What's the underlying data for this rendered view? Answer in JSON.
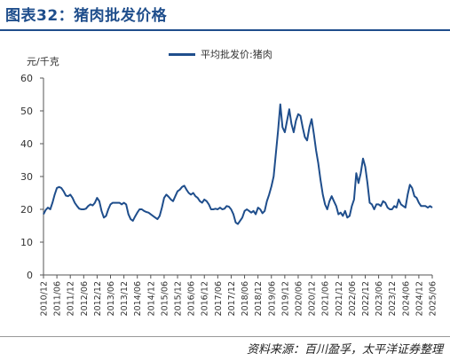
{
  "figure": {
    "title": "图表32：猪肉批发价格",
    "source": "资料来源：百川盈孚，太平洋证券整理"
  },
  "chart_data": {
    "type": "line",
    "unit_label": "元/千克",
    "ylim": [
      0,
      60
    ],
    "yticks": [
      0,
      10,
      20,
      30,
      40,
      50,
      60
    ],
    "x_range": [
      "2010-12",
      "2025-06"
    ],
    "xticks": [
      "2010/12",
      "2011/06",
      "2011/12",
      "2012/06",
      "2012/12",
      "2013/06",
      "2013/12",
      "2014/06",
      "2014/12",
      "2015/06",
      "2015/12",
      "2016/06",
      "2016/12",
      "2017/06",
      "2017/12",
      "2018/06",
      "2018/12",
      "2019/06",
      "2019/12",
      "2020/06",
      "2020/12",
      "2021/06",
      "2021/12",
      "2022/06",
      "2022/12",
      "2023/06",
      "2023/12",
      "2024/06",
      "2024/12",
      "2025/06"
    ],
    "grid": false,
    "legend_position": "top-center",
    "series": [
      {
        "name": "平均批发价:猪肉",
        "color": "#1f4e8c",
        "x": [
          "2010-12",
          "2011-01",
          "2011-02",
          "2011-03",
          "2011-04",
          "2011-05",
          "2011-06",
          "2011-07",
          "2011-08",
          "2011-09",
          "2011-10",
          "2011-11",
          "2011-12",
          "2012-01",
          "2012-02",
          "2012-03",
          "2012-04",
          "2012-05",
          "2012-06",
          "2012-07",
          "2012-08",
          "2012-09",
          "2012-10",
          "2012-11",
          "2012-12",
          "2013-01",
          "2013-02",
          "2013-03",
          "2013-04",
          "2013-05",
          "2013-06",
          "2013-07",
          "2013-08",
          "2013-09",
          "2013-10",
          "2013-11",
          "2013-12",
          "2014-01",
          "2014-02",
          "2014-03",
          "2014-04",
          "2014-05",
          "2014-06",
          "2014-07",
          "2014-08",
          "2014-09",
          "2014-10",
          "2014-11",
          "2014-12",
          "2015-01",
          "2015-02",
          "2015-03",
          "2015-04",
          "2015-05",
          "2015-06",
          "2015-07",
          "2015-08",
          "2015-09",
          "2015-10",
          "2015-11",
          "2015-12",
          "2016-01",
          "2016-02",
          "2016-03",
          "2016-04",
          "2016-05",
          "2016-06",
          "2016-07",
          "2016-08",
          "2016-09",
          "2016-10",
          "2016-11",
          "2016-12",
          "2017-01",
          "2017-02",
          "2017-03",
          "2017-04",
          "2017-05",
          "2017-06",
          "2017-07",
          "2017-08",
          "2017-09",
          "2017-10",
          "2017-11",
          "2017-12",
          "2018-01",
          "2018-02",
          "2018-03",
          "2018-04",
          "2018-05",
          "2018-06",
          "2018-07",
          "2018-08",
          "2018-09",
          "2018-10",
          "2018-11",
          "2018-12",
          "2019-01",
          "2019-02",
          "2019-03",
          "2019-04",
          "2019-05",
          "2019-06",
          "2019-07",
          "2019-08",
          "2019-09",
          "2019-10",
          "2019-11",
          "2019-12",
          "2020-01",
          "2020-02",
          "2020-03",
          "2020-04",
          "2020-05",
          "2020-06",
          "2020-07",
          "2020-08",
          "2020-09",
          "2020-10",
          "2020-11",
          "2020-12",
          "2021-01",
          "2021-02",
          "2021-03",
          "2021-04",
          "2021-05",
          "2021-06",
          "2021-07",
          "2021-08",
          "2021-09",
          "2021-10",
          "2021-11",
          "2021-12",
          "2022-01",
          "2022-02",
          "2022-03",
          "2022-04",
          "2022-05",
          "2022-06",
          "2022-07",
          "2022-08",
          "2022-09",
          "2022-10",
          "2022-11",
          "2022-12",
          "2023-01",
          "2023-02",
          "2023-03",
          "2023-04",
          "2023-05",
          "2023-06",
          "2023-07",
          "2023-08",
          "2023-09",
          "2023-10",
          "2023-11",
          "2023-12",
          "2024-01",
          "2024-02",
          "2024-03",
          "2024-04",
          "2024-05",
          "2024-06",
          "2024-07",
          "2024-08",
          "2024-09",
          "2024-10",
          "2024-11",
          "2024-12",
          "2025-01",
          "2025-02",
          "2025-03",
          "2025-04",
          "2025-05",
          "2025-06"
        ],
        "values": [
          18.5,
          19.8,
          20.5,
          20.0,
          22.0,
          24.5,
          26.5,
          26.8,
          26.5,
          25.5,
          24.2,
          24.0,
          24.5,
          23.5,
          22.0,
          21.0,
          20.2,
          20.0,
          20.0,
          20.2,
          21.0,
          21.5,
          21.2,
          22.0,
          23.5,
          22.5,
          19.5,
          17.5,
          18.0,
          20.0,
          21.5,
          22.0,
          22.0,
          22.0,
          22.0,
          21.5,
          22.0,
          21.5,
          18.5,
          17.0,
          16.5,
          17.8,
          19.0,
          20.0,
          20.0,
          19.5,
          19.2,
          19.0,
          18.5,
          18.0,
          17.5,
          17.0,
          18.0,
          20.5,
          23.5,
          24.5,
          23.8,
          23.0,
          22.5,
          24.0,
          25.5,
          26.0,
          26.8,
          27.2,
          26.0,
          25.0,
          24.5,
          25.0,
          24.0,
          23.5,
          22.5,
          22.0,
          23.0,
          22.5,
          21.5,
          20.0,
          20.0,
          20.2,
          20.0,
          20.5,
          20.0,
          20.2,
          21.0,
          20.8,
          20.0,
          18.5,
          16.0,
          15.5,
          16.5,
          17.5,
          19.5,
          20.0,
          19.5,
          19.0,
          19.5,
          18.5,
          20.5,
          20.0,
          18.8,
          19.5,
          22.5,
          24.5,
          27.0,
          30.0,
          37.0,
          44.0,
          52.0,
          45.0,
          43.5,
          47.0,
          50.5,
          46.0,
          43.5,
          47.0,
          49.0,
          48.5,
          45.0,
          42.0,
          41.0,
          45.0,
          47.5,
          43.0,
          38.0,
          34.0,
          29.0,
          24.5,
          21.5,
          20.0,
          22.5,
          24.0,
          22.5,
          21.0,
          18.5,
          19.0,
          18.0,
          19.5,
          17.5,
          18.0,
          21.0,
          23.0,
          31.0,
          28.0,
          31.0,
          35.5,
          33.0,
          28.0,
          22.0,
          21.5,
          20.0,
          21.5,
          21.5,
          21.0,
          22.5,
          22.0,
          20.5,
          20.0,
          20.0,
          21.0,
          20.5,
          23.0,
          21.5,
          21.0,
          20.5,
          24.5,
          27.5,
          26.5,
          24.0,
          23.5,
          22.0,
          21.0,
          21.0,
          21.0,
          20.5,
          21.0,
          20.5
        ]
      }
    ]
  }
}
